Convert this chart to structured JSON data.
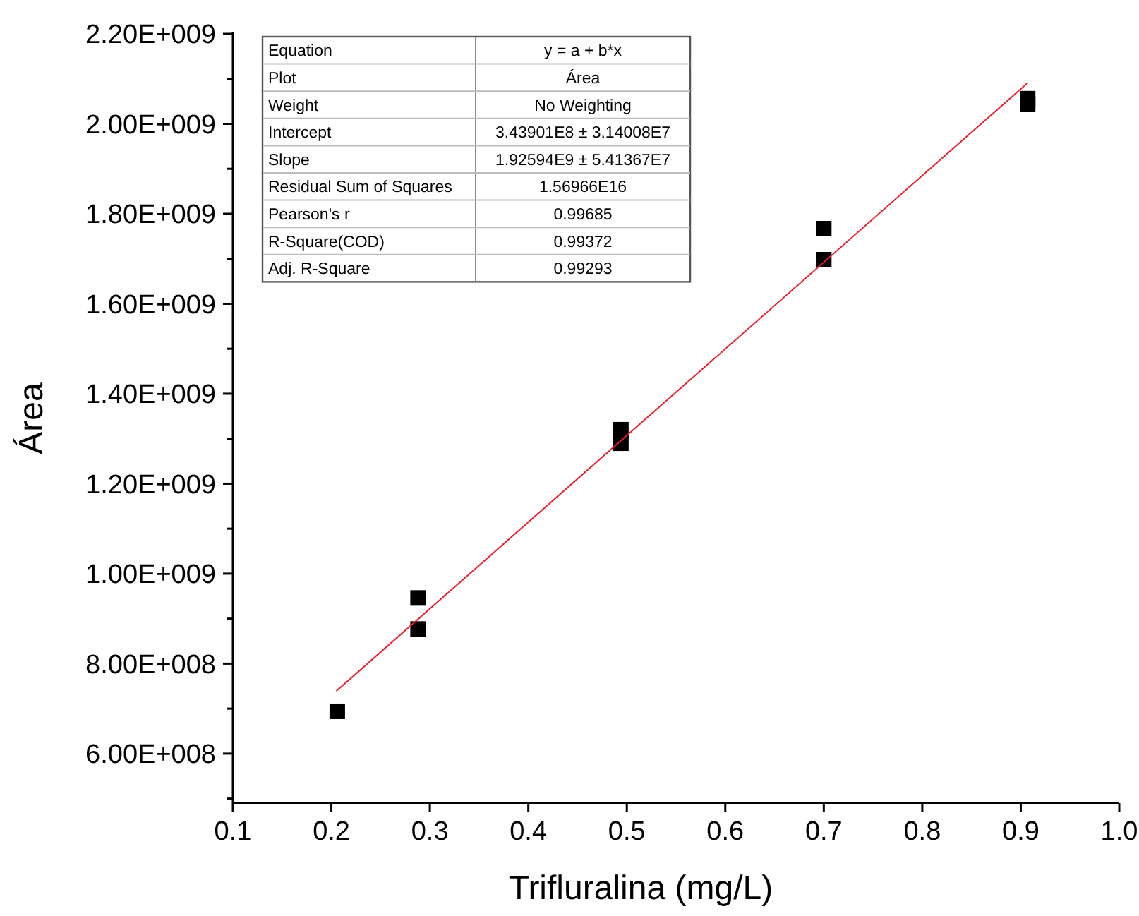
{
  "chart_data": {
    "type": "scatter",
    "xlabel": "Trifluralina (mg/L)",
    "ylabel": "Área",
    "marker": "square",
    "grid": false,
    "xlim": [
      0.1,
      1.0
    ],
    "xticks": [
      0.1,
      0.2,
      0.3,
      0.4,
      0.5,
      0.6,
      0.7,
      0.8,
      0.9,
      {
        "value": 1,
        "label": "1.0"
      }
    ],
    "ylim": [
      490000000,
      2200000000
    ],
    "yticks": [
      {
        "value": 500000000,
        "label": null
      },
      {
        "value": 600000000,
        "label": "6.00E+008"
      },
      {
        "value": 700000000,
        "label": null
      },
      {
        "value": 800000000,
        "label": "8.00E+008"
      },
      {
        "value": 900000000,
        "label": null
      },
      {
        "value": 1000000000,
        "label": "1.00E+009"
      },
      {
        "value": 1100000000,
        "label": null
      },
      {
        "value": 1200000000,
        "label": "1.20E+009"
      },
      {
        "value": 1300000000,
        "label": null
      },
      {
        "value": 1400000000,
        "label": "1.40E+009"
      },
      {
        "value": 1500000000,
        "label": null
      },
      {
        "value": 1600000000,
        "label": "1.60E+009"
      },
      {
        "value": 1700000000,
        "label": null
      },
      {
        "value": 1800000000,
        "label": "1.80E+009"
      },
      {
        "value": 1900000000,
        "label": null
      },
      {
        "value": 2000000000,
        "label": "2.00E+009"
      },
      {
        "value": 2100000000,
        "label": null
      },
      {
        "value": 2200000000,
        "label": "2.20E+009"
      }
    ],
    "series": [
      {
        "color": "#000000",
        "x": [
          0.206,
          0.288,
          0.288,
          0.494,
          0.494,
          0.7,
          0.7,
          0.907,
          0.907
        ],
        "values": [
          694000000,
          946000000,
          877000000,
          1320000000,
          1290000000,
          1767000000,
          1698000000,
          2056000000,
          2044000000
        ]
      },
      {
        "type": "line",
        "color": "#e8202a",
        "marker": "none",
        "x": [
          0.205,
          0.907
        ],
        "values": [
          739000000,
          2091000000
        ]
      }
    ],
    "annotations": [
      "Equation",
      "y = a + b*x",
      "Plot",
      "Área",
      "Weight",
      "No Weighting",
      "Intercept",
      "3.43901E8 ± 3.14008E7",
      "Slope",
      "1.92594E9 ± 5.41367E7",
      "Residual Sum of Squares",
      "1.56966E16",
      "Pearson's r",
      "0.99685",
      "R-Square(COD)",
      "0.99372",
      "Adj. R-Square",
      "0.99293"
    ]
  }
}
